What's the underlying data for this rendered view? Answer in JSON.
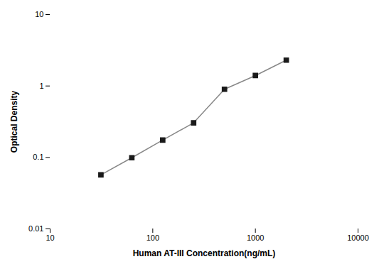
{
  "chart_data": {
    "type": "line",
    "x": [
      31.25,
      62.5,
      125,
      250,
      500,
      1000,
      2000
    ],
    "values": [
      0.057,
      0.099,
      0.175,
      0.305,
      0.9,
      1.4,
      2.3
    ],
    "xlabel": "Human AT-III Concentration(ng/mL)",
    "ylabel": "Optical Density",
    "xlim": [
      10,
      10000
    ],
    "ylim": [
      0.01,
      10
    ],
    "xticks": [
      10,
      100,
      1000,
      10000
    ],
    "yticks": [
      0.01,
      0.1,
      1,
      10
    ],
    "log": true,
    "grid": false,
    "color": "#888888",
    "marker": "square"
  }
}
